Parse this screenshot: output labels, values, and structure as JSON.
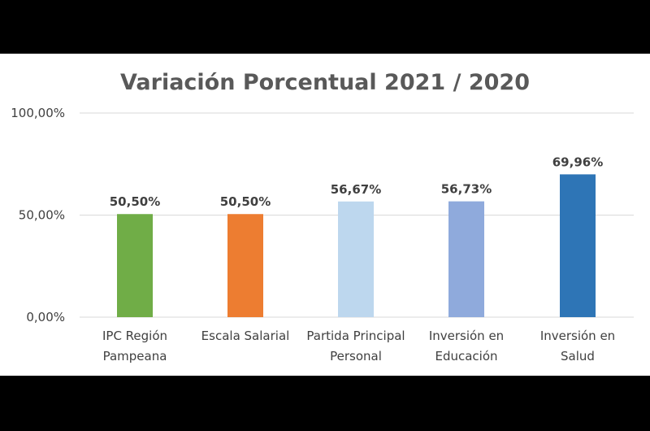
{
  "chart_data": {
    "type": "bar",
    "title": "Variación Porcentual 2021 / 2020",
    "xlabel": "",
    "ylabel": "",
    "ylim": [
      0,
      100
    ],
    "yticks": [
      {
        "value": 0,
        "label": "0,00%"
      },
      {
        "value": 50,
        "label": "50,00%"
      },
      {
        "value": 100,
        "label": "100,00%"
      }
    ],
    "grid": true,
    "categories": [
      [
        "IPC Región",
        "Pampeana"
      ],
      [
        "Escala Salarial"
      ],
      [
        "Partida Principal",
        "Personal"
      ],
      [
        "Inversión en",
        "Educación"
      ],
      [
        "Inversión en",
        "Salud"
      ]
    ],
    "values": [
      50.5,
      50.5,
      56.67,
      56.73,
      69.96
    ],
    "data_labels": [
      "50,50%",
      "50,50%",
      "56,67%",
      "56,73%",
      "69,96%"
    ],
    "colors": [
      "#70ad47",
      "#ed7d31",
      "#bdd7ee",
      "#8faadc",
      "#2e75b6"
    ]
  }
}
